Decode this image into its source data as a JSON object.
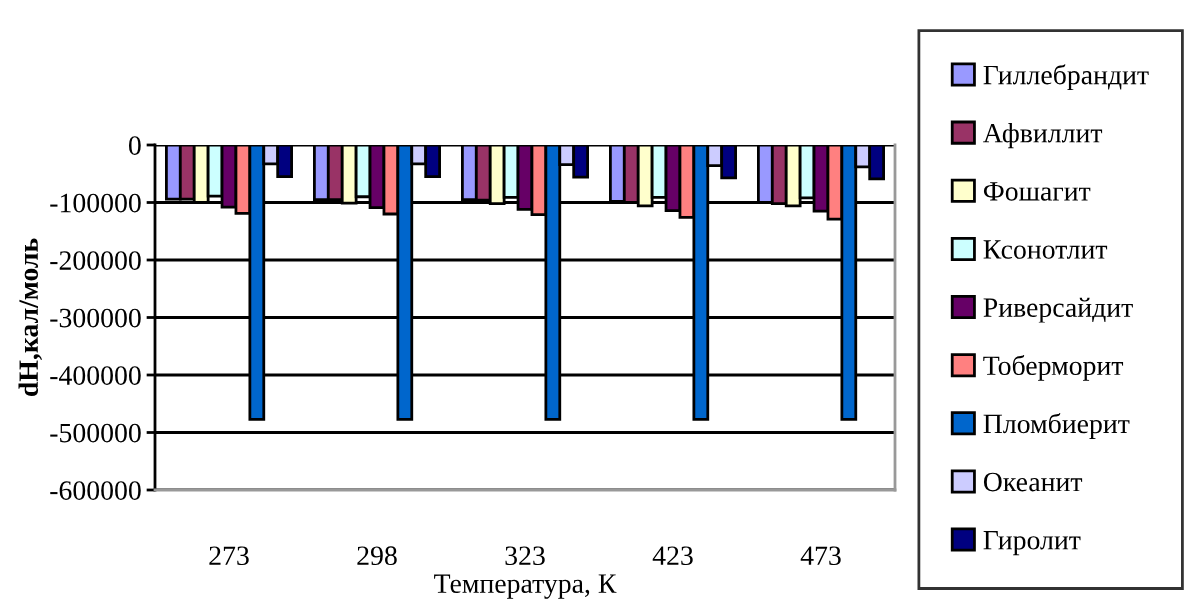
{
  "chart_data": {
    "type": "bar",
    "xlabel": "Температура, К",
    "ylabel": "dH,кал/моль",
    "categories": [
      "273",
      "298",
      "323",
      "423",
      "473"
    ],
    "series": [
      {
        "name": "Гиллебрандит",
        "color": "#9999ff",
        "values": [
          -94000,
          -95000,
          -95000,
          -98000,
          -100000
        ]
      },
      {
        "name": "Афвиллит",
        "color": "#993366",
        "values": [
          -94000,
          -95000,
          -96000,
          -100000,
          -102000
        ]
      },
      {
        "name": "Фошагит",
        "color": "#ffffcc",
        "values": [
          -100000,
          -101000,
          -102000,
          -106000,
          -106000
        ]
      },
      {
        "name": "Ксонотлит",
        "color": "#ccffff",
        "values": [
          -89000,
          -90000,
          -91000,
          -91000,
          -92000
        ]
      },
      {
        "name": "Риверсайдит",
        "color": "#660066",
        "values": [
          -108000,
          -109000,
          -112000,
          -114000,
          -115000
        ]
      },
      {
        "name": "Тоберморит",
        "color": "#ff8080",
        "values": [
          -119000,
          -120000,
          -121000,
          -126000,
          -129000
        ]
      },
      {
        "name": "Пломбиерит",
        "color": "#0066cc",
        "values": [
          -477000,
          -477000,
          -477000,
          -477000,
          -477000
        ]
      },
      {
        "name": "Океанит",
        "color": "#ccccff",
        "values": [
          -33000,
          -33000,
          -34000,
          -36000,
          -38000
        ]
      },
      {
        "name": "Гиролит",
        "color": "#000080",
        "values": [
          -55000,
          -55000,
          -56000,
          -57000,
          -59000
        ]
      }
    ],
    "ylim": [
      -600000,
      0
    ],
    "yticks": [
      -600000,
      -500000,
      -400000,
      -300000,
      -200000,
      -100000,
      0
    ],
    "grid": "y",
    "legend": "right"
  }
}
